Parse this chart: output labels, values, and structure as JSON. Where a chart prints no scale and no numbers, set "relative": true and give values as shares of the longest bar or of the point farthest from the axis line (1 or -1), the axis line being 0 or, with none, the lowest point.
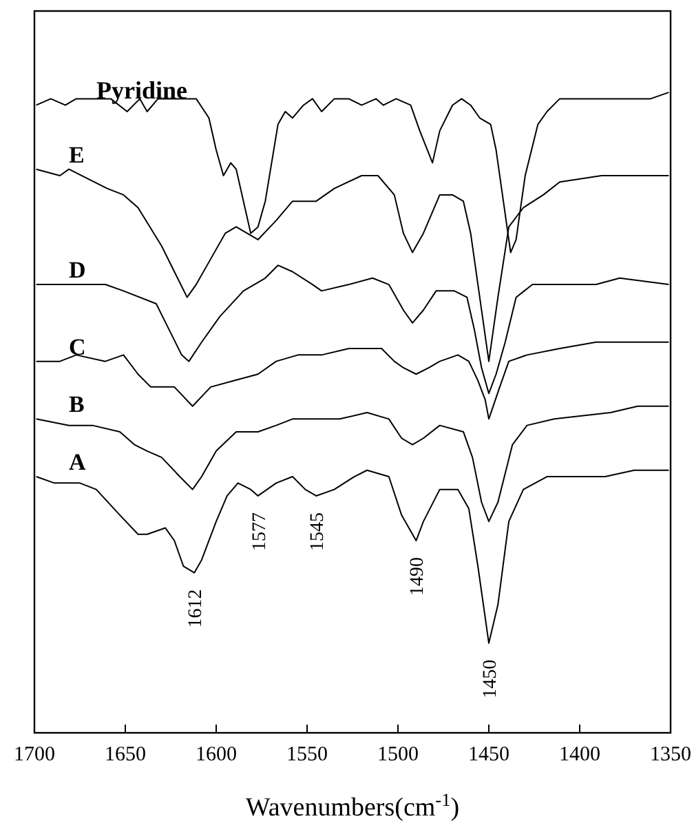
{
  "chart_data": {
    "type": "line",
    "relative": true,
    "xlabel": "Wavenumbers(cm$^{-1}$)",
    "xlim": [
      1700,
      1350
    ],
    "xticks": [
      1700,
      1650,
      1600,
      1550,
      1500,
      1450,
      1400,
      1350
    ],
    "grid": false,
    "marker": "none",
    "line_style": "solid",
    "series": [
      {
        "name": "Pyridine",
        "color": "#000000",
        "x": [
          1699,
          1691,
          1683,
          1677,
          1658,
          1649,
          1642,
          1638,
          1632,
          1620,
          1611,
          1604,
          1600,
          1596,
          1592,
          1589,
          1581,
          1577,
          1573,
          1566,
          1562,
          1558,
          1552,
          1547,
          1542,
          1535,
          1527,
          1520,
          1512,
          1508,
          1501,
          1493,
          1488,
          1481,
          1477,
          1470,
          1465,
          1460,
          1455,
          1449,
          1446,
          1442,
          1438,
          1435,
          1430,
          1423,
          1418,
          1411,
          1403,
          1395,
          1392,
          1382,
          1374,
          1368,
          1361,
          1351
        ],
        "values": [
          0.98,
          0.99,
          0.98,
          0.99,
          0.99,
          0.97,
          0.99,
          0.97,
          0.99,
          0.99,
          0.99,
          0.96,
          0.91,
          0.87,
          0.89,
          0.88,
          0.78,
          0.79,
          0.83,
          0.95,
          0.97,
          0.96,
          0.98,
          0.99,
          0.97,
          0.99,
          0.99,
          0.98,
          0.99,
          0.98,
          0.99,
          0.98,
          0.94,
          0.89,
          0.94,
          0.98,
          0.99,
          0.98,
          0.96,
          0.95,
          0.91,
          0.83,
          0.75,
          0.77,
          0.87,
          0.95,
          0.97,
          0.99,
          0.99,
          0.99,
          0.99,
          0.99,
          0.99,
          0.99,
          0.99,
          1.0
        ]
      },
      {
        "name": "E",
        "color": "#000000",
        "x": [
          1699,
          1686,
          1681,
          1660,
          1651,
          1643,
          1630,
          1623,
          1616,
          1611,
          1603,
          1595,
          1589,
          1583,
          1577,
          1567,
          1558,
          1545,
          1535,
          1520,
          1511,
          1502,
          1497,
          1492,
          1486,
          1477,
          1470,
          1464,
          1460,
          1456,
          1450,
          1445,
          1439,
          1431,
          1420,
          1411,
          1388,
          1373,
          1351
        ],
        "values": [
          0.88,
          0.87,
          0.88,
          0.85,
          0.84,
          0.82,
          0.76,
          0.72,
          0.68,
          0.7,
          0.74,
          0.78,
          0.79,
          0.78,
          0.77,
          0.8,
          0.83,
          0.83,
          0.85,
          0.87,
          0.87,
          0.84,
          0.78,
          0.75,
          0.78,
          0.84,
          0.84,
          0.83,
          0.78,
          0.7,
          0.58,
          0.68,
          0.79,
          0.82,
          0.84,
          0.86,
          0.87,
          0.87,
          0.87
        ]
      },
      {
        "name": "D",
        "color": "#000000",
        "x": [
          1699,
          1681,
          1661,
          1651,
          1633,
          1626,
          1619,
          1615,
          1608,
          1598,
          1585,
          1573,
          1566,
          1558,
          1547,
          1542,
          1527,
          1514,
          1505,
          1497,
          1492,
          1486,
          1479,
          1469,
          1462,
          1458,
          1454,
          1450,
          1446,
          1441,
          1435,
          1426,
          1411,
          1391,
          1378,
          1351
        ],
        "values": [
          0.7,
          0.7,
          0.7,
          0.69,
          0.67,
          0.63,
          0.59,
          0.58,
          0.61,
          0.65,
          0.69,
          0.71,
          0.73,
          0.72,
          0.7,
          0.69,
          0.7,
          0.71,
          0.7,
          0.66,
          0.64,
          0.66,
          0.69,
          0.69,
          0.68,
          0.63,
          0.57,
          0.53,
          0.56,
          0.61,
          0.68,
          0.7,
          0.7,
          0.7,
          0.71,
          0.7
        ]
      },
      {
        "name": "C",
        "color": "#000000",
        "x": [
          1699,
          1686,
          1677,
          1661,
          1651,
          1643,
          1636,
          1623,
          1613,
          1603,
          1590,
          1577,
          1567,
          1555,
          1542,
          1527,
          1520,
          1509,
          1502,
          1497,
          1490,
          1483,
          1477,
          1467,
          1461,
          1456,
          1452,
          1450,
          1444,
          1439,
          1429,
          1411,
          1391,
          1373,
          1351
        ],
        "values": [
          0.58,
          0.58,
          0.59,
          0.58,
          0.59,
          0.56,
          0.54,
          0.54,
          0.51,
          0.54,
          0.55,
          0.56,
          0.58,
          0.59,
          0.59,
          0.6,
          0.6,
          0.6,
          0.58,
          0.57,
          0.56,
          0.57,
          0.58,
          0.59,
          0.58,
          0.55,
          0.52,
          0.49,
          0.54,
          0.58,
          0.59,
          0.6,
          0.61,
          0.61,
          0.61
        ]
      },
      {
        "name": "B",
        "color": "#000000",
        "x": [
          1699,
          1681,
          1668,
          1653,
          1645,
          1638,
          1630,
          1620,
          1613,
          1608,
          1600,
          1589,
          1577,
          1567,
          1558,
          1547,
          1532,
          1517,
          1505,
          1498,
          1492,
          1486,
          1477,
          1464,
          1459,
          1454,
          1450,
          1445,
          1437,
          1429,
          1414,
          1383,
          1368,
          1351
        ],
        "values": [
          0.49,
          0.48,
          0.48,
          0.47,
          0.45,
          0.44,
          0.43,
          0.4,
          0.38,
          0.4,
          0.44,
          0.47,
          0.47,
          0.48,
          0.49,
          0.49,
          0.49,
          0.5,
          0.49,
          0.46,
          0.45,
          0.46,
          0.48,
          0.47,
          0.43,
          0.36,
          0.33,
          0.36,
          0.45,
          0.48,
          0.49,
          0.5,
          0.51,
          0.51
        ]
      },
      {
        "name": "A",
        "color": "#000000",
        "x": [
          1699,
          1689,
          1675,
          1666,
          1653,
          1643,
          1638,
          1628,
          1623,
          1618,
          1612,
          1608,
          1600,
          1594,
          1588,
          1581,
          1577,
          1567,
          1558,
          1551,
          1545,
          1535,
          1524,
          1517,
          1505,
          1498,
          1490,
          1486,
          1477,
          1467,
          1461,
          1456,
          1450,
          1445,
          1439,
          1431,
          1418,
          1386,
          1370,
          1351
        ],
        "values": [
          0.4,
          0.39,
          0.39,
          0.38,
          0.34,
          0.31,
          0.31,
          0.32,
          0.3,
          0.26,
          0.25,
          0.27,
          0.33,
          0.37,
          0.39,
          0.38,
          0.37,
          0.39,
          0.4,
          0.38,
          0.37,
          0.38,
          0.4,
          0.41,
          0.4,
          0.34,
          0.3,
          0.33,
          0.38,
          0.38,
          0.35,
          0.26,
          0.14,
          0.2,
          0.33,
          0.38,
          0.4,
          0.4,
          0.41,
          0.41
        ]
      }
    ],
    "annotations": [
      {
        "text": "1612",
        "x": 1612,
        "y": 0.25
      },
      {
        "text": "1577",
        "x": 1577,
        "y": 0.37
      },
      {
        "text": "1545",
        "x": 1545,
        "y": 0.37
      },
      {
        "text": "1490",
        "x": 1490,
        "y": 0.3
      },
      {
        "text": "1450",
        "x": 1450,
        "y": 0.14
      }
    ]
  }
}
